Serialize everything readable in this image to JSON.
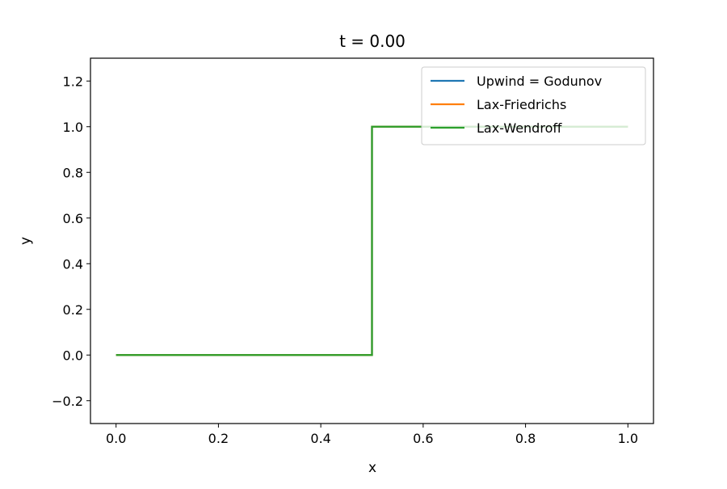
{
  "chart_data": {
    "type": "line",
    "title": "t = 0.00",
    "xlabel": "x",
    "ylabel": "y",
    "xlim": [
      -0.05,
      1.05
    ],
    "ylim": [
      -0.3,
      1.3
    ],
    "xticks": [
      0.0,
      0.2,
      0.4,
      0.6,
      0.8,
      1.0
    ],
    "xtick_labels": [
      "0.0",
      "0.2",
      "0.4",
      "0.6",
      "0.8",
      "1.0"
    ],
    "yticks": [
      -0.2,
      0.0,
      0.2,
      0.4,
      0.6,
      0.8,
      1.0,
      1.2
    ],
    "ytick_labels": [
      "−0.2",
      "0.0",
      "0.2",
      "0.4",
      "0.6",
      "0.8",
      "1.0",
      "1.2"
    ],
    "grid": false,
    "legend_position": "top-right",
    "series": [
      {
        "name": "Upwind = Godunov",
        "color": "#1f77b4",
        "x": [
          0.0,
          0.5,
          0.5,
          1.0
        ],
        "y": [
          0.0,
          0.0,
          1.0,
          1.0
        ]
      },
      {
        "name": "Lax-Friedrichs",
        "color": "#ff7f0e",
        "x": [
          0.0,
          0.5,
          0.5,
          1.0
        ],
        "y": [
          0.0,
          0.0,
          1.0,
          1.0
        ]
      },
      {
        "name": "Lax-Wendroff",
        "color": "#2ca02c",
        "x": [
          0.0,
          0.5,
          0.5,
          1.0
        ],
        "y": [
          0.0,
          0.0,
          1.0,
          1.0
        ]
      }
    ]
  }
}
